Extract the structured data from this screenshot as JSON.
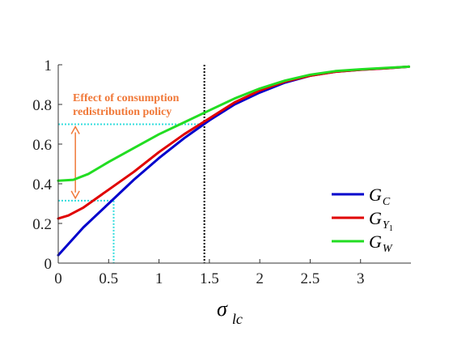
{
  "chart_data": {
    "type": "line",
    "xlabel_symbol": "σ",
    "xlabel_subscript": "lc",
    "xlim": [
      0,
      3.5
    ],
    "ylim": [
      0,
      1
    ],
    "xticks": [
      "0",
      "0.5",
      "1",
      "1.5",
      "2",
      "2.5",
      "3"
    ],
    "yticks": [
      "0",
      "0.2",
      "0.4",
      "0.6",
      "0.8",
      "1"
    ],
    "legend_position": "lower-right",
    "series": [
      {
        "name": "G_C",
        "label_main": "G",
        "label_sub": "C",
        "color": "#0000cc",
        "x": [
          0,
          0.25,
          0.5,
          0.75,
          1.0,
          1.25,
          1.5,
          1.75,
          2.0,
          2.25,
          2.5,
          2.75,
          3.0,
          3.25,
          3.48
        ],
        "y": [
          0.04,
          0.18,
          0.3,
          0.42,
          0.53,
          0.63,
          0.72,
          0.8,
          0.86,
          0.91,
          0.945,
          0.965,
          0.975,
          0.982,
          0.99
        ]
      },
      {
        "name": "G_Y1",
        "label_main": "G",
        "label_sub": "Y",
        "label_subsub": "1",
        "color": "#e00000",
        "x": [
          0,
          0.1,
          0.25,
          0.5,
          0.75,
          1.0,
          1.25,
          1.5,
          1.75,
          2.0,
          2.25,
          2.5,
          2.75,
          3.0,
          3.25,
          3.48
        ],
        "y": [
          0.225,
          0.24,
          0.28,
          0.37,
          0.46,
          0.56,
          0.65,
          0.73,
          0.81,
          0.87,
          0.915,
          0.945,
          0.965,
          0.975,
          0.982,
          0.99
        ]
      },
      {
        "name": "G_W",
        "label_main": "G",
        "label_sub": "W",
        "color": "#22dd22",
        "x": [
          0,
          0.15,
          0.3,
          0.5,
          0.75,
          1.0,
          1.25,
          1.5,
          1.75,
          2.0,
          2.25,
          2.5,
          2.75,
          3.0,
          3.25,
          3.48
        ],
        "y": [
          0.415,
          0.42,
          0.45,
          0.51,
          0.58,
          0.65,
          0.71,
          0.77,
          0.83,
          0.88,
          0.92,
          0.95,
          0.968,
          0.977,
          0.984,
          0.99
        ]
      }
    ],
    "reference_lines": {
      "vertical_black_x": 1.45,
      "cyan_vertical_x": 0.55,
      "cyan_low_y": 0.315,
      "cyan_high_y": 0.7,
      "arrow_x": 0.17
    },
    "annotation_line1": "Effect of consumption",
    "annotation_line2": "redistribution policy"
  }
}
